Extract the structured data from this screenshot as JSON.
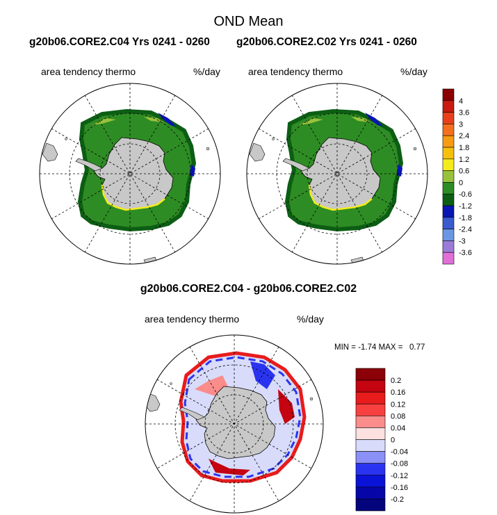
{
  "title": "OND Mean",
  "top_panels": {
    "left": {
      "run": "g20b06.CORE2.C04  Yrs 0241 - 0260",
      "variable": "area tendency thermo",
      "units": "%/day"
    },
    "right": {
      "run": "g20b06.CORE2.C02  Yrs 0241 - 0260",
      "variable": "area tendency thermo",
      "units": "%/day"
    }
  },
  "difference_panel": {
    "title": "g20b06.CORE2.C04 - g20b06.CORE2.C02",
    "variable": "area tendency thermo",
    "units": "%/day",
    "min_label": "MIN = ",
    "min": "-1.74",
    "max_label": "MAX = ",
    "max": "0.77"
  },
  "colorbar_top": {
    "labels": [
      "4",
      "3.6",
      "3",
      "2.4",
      "1.8",
      "1.2",
      "0.6",
      "0",
      "-0.6",
      "-1.2",
      "-1.8",
      "-2.4",
      "-3",
      "-3.6"
    ],
    "colors": [
      "#8b0000",
      "#c81a0e",
      "#e8401c",
      "#f4701e",
      "#f79c12",
      "#f6c00c",
      "#f4ec1a",
      "#98c23c",
      "#2e8c24",
      "#0c5e14",
      "#0a14b4",
      "#3a5ad0",
      "#6a96e4",
      "#9a7cd8",
      "#e070d8"
    ]
  },
  "colorbar_diff": {
    "labels": [
      "0.2",
      "0.16",
      "0.12",
      "0.08",
      "0.04",
      "0",
      "-0.04",
      "-0.08",
      "-0.12",
      "-0.16",
      "-0.2"
    ],
    "colors": [
      "#8c0008",
      "#c40410",
      "#e81c1c",
      "#f84040",
      "#fa8c8c",
      "#fde0e0",
      "#d8dcfa",
      "#8a90f6",
      "#2a34f0",
      "#0a12d8",
      "#0606a8",
      "#04047c"
    ]
  }
}
